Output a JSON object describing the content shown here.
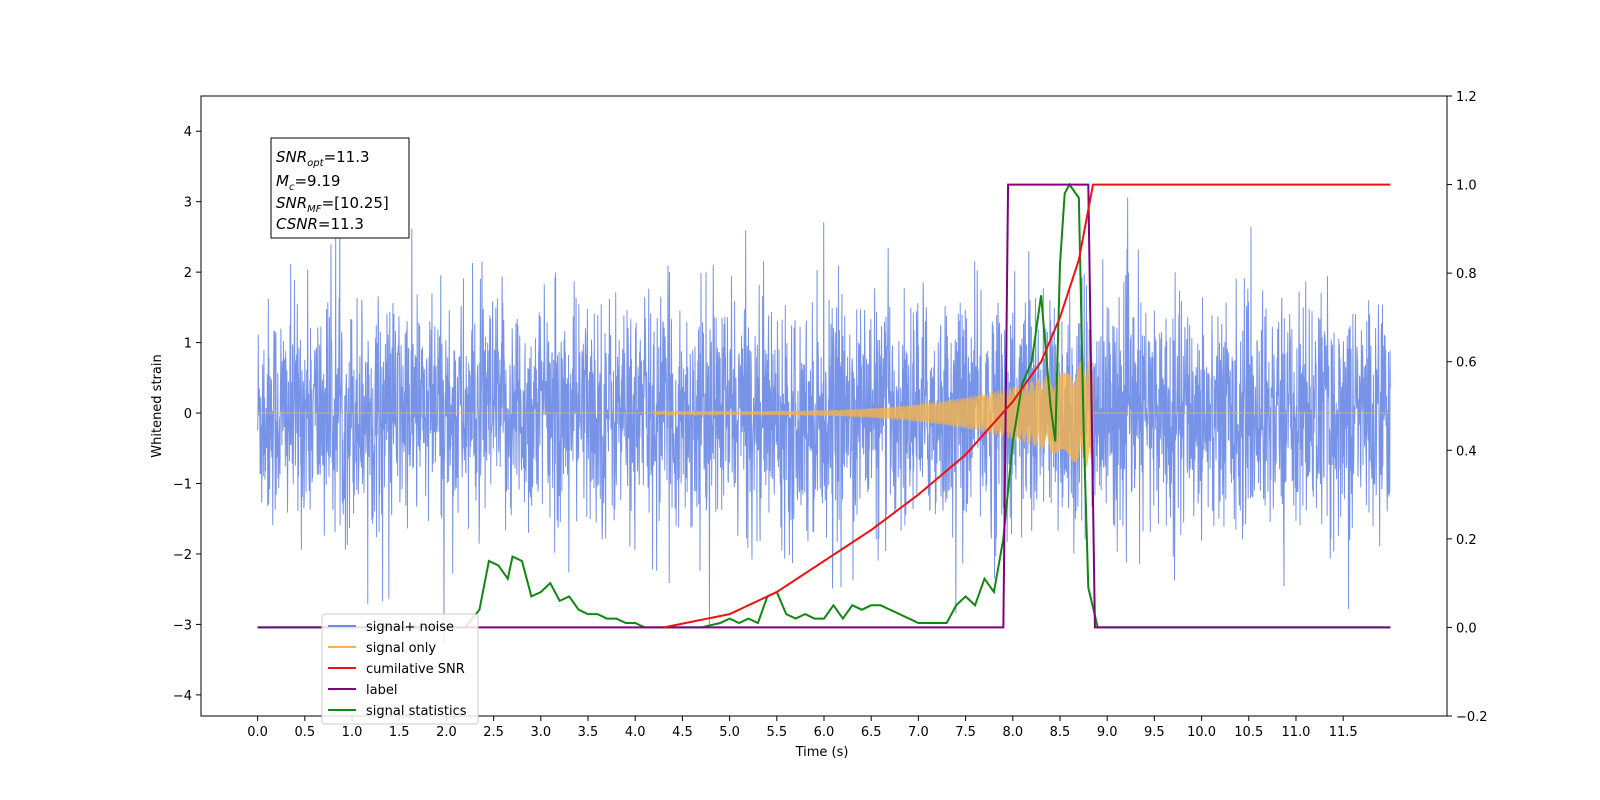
{
  "chart_data": {
    "type": "line",
    "xlabel": "Time (s)",
    "ylabel": "Whitened strain",
    "xlim": [
      -0.6,
      12.6
    ],
    "ylim": [
      -4.3,
      4.5
    ],
    "y2lim": [
      -0.2,
      1.2
    ],
    "x_ticks": [
      "0.0",
      "0.5",
      "1.0",
      "1.5",
      "2.0",
      "2.5",
      "3.0",
      "3.5",
      "4.0",
      "4.5",
      "5.0",
      "5.5",
      "6.0",
      "6.5",
      "7.0",
      "7.5",
      "8.0",
      "8.5",
      "9.0",
      "9.5",
      "10.0",
      "10.5",
      "11.0",
      "11.5"
    ],
    "y_ticks": [
      "4",
      "3",
      "2",
      "1",
      "0",
      "−1",
      "−2",
      "−3",
      "−4"
    ],
    "y2_ticks": [
      "1.2",
      "1.0",
      "0.8",
      "0.6",
      "0.4",
      "0.2",
      "0.0",
      "−0.2"
    ],
    "annotation": {
      "snr_opt": "=11.3",
      "mc": "=9.19",
      "snr_mf": "=[10.25]",
      "csnr": "=11.3"
    },
    "colors": {
      "noise": "#6b8ae6",
      "signal": "#f5b44a",
      "cumsnr": "#ee1111",
      "label": "#800080",
      "stats": "#118811"
    },
    "series": [
      {
        "name": "signal+ noise",
        "axis": "left",
        "description_values": "noise std ~0.85, x 0.0-12.0"
      },
      {
        "name": "signal only",
        "axis": "left",
        "values_note": "chirp 4.2-8.85 s, peak amplitude ~0.8"
      },
      {
        "name": "cumilative SNR",
        "axis": "right",
        "x": [
          4.3,
          5.0,
          5.5,
          6.0,
          6.5,
          7.0,
          7.5,
          8.0,
          8.3,
          8.5,
          8.7,
          8.85,
          12.0
        ],
        "values": [
          0.0,
          0.03,
          0.08,
          0.15,
          0.22,
          0.3,
          0.39,
          0.51,
          0.6,
          0.7,
          0.83,
          1.0,
          1.0
        ]
      },
      {
        "name": "label",
        "axis": "right",
        "x": [
          0.0,
          7.9,
          7.95,
          8.8,
          8.87,
          12.0
        ],
        "values": [
          0.0,
          0.0,
          1.0,
          1.0,
          0.0,
          0.0
        ]
      },
      {
        "name": "signal statistics",
        "axis": "right",
        "x": [
          0.0,
          2.2,
          2.35,
          2.45,
          2.55,
          2.65,
          2.7,
          2.8,
          2.9,
          3.0,
          3.1,
          3.2,
          3.3,
          3.4,
          3.5,
          3.6,
          3.7,
          3.8,
          3.9,
          4.0,
          4.1,
          4.3,
          4.5,
          4.7,
          4.9,
          5.0,
          5.1,
          5.2,
          5.3,
          5.4,
          5.5,
          5.6,
          5.7,
          5.8,
          5.9,
          6.0,
          6.1,
          6.2,
          6.3,
          6.4,
          6.5,
          6.6,
          6.7,
          6.8,
          6.9,
          7.0,
          7.1,
          7.2,
          7.3,
          7.4,
          7.5,
          7.6,
          7.7,
          7.8,
          7.9,
          8.0,
          8.1,
          8.2,
          8.3,
          8.4,
          8.45,
          8.5,
          8.55,
          8.6,
          8.7,
          8.75,
          8.8,
          8.9,
          12.0
        ],
        "values": [
          0.0,
          0.0,
          0.04,
          0.15,
          0.14,
          0.11,
          0.16,
          0.15,
          0.07,
          0.08,
          0.1,
          0.06,
          0.07,
          0.04,
          0.03,
          0.03,
          0.02,
          0.02,
          0.01,
          0.01,
          0.0,
          0.0,
          0.0,
          0.0,
          0.01,
          0.02,
          0.01,
          0.02,
          0.01,
          0.07,
          0.08,
          0.03,
          0.02,
          0.03,
          0.02,
          0.02,
          0.05,
          0.02,
          0.05,
          0.04,
          0.05,
          0.05,
          0.04,
          0.03,
          0.02,
          0.01,
          0.01,
          0.01,
          0.01,
          0.05,
          0.07,
          0.05,
          0.11,
          0.08,
          0.2,
          0.42,
          0.55,
          0.6,
          0.75,
          0.5,
          0.42,
          0.82,
          0.98,
          1.0,
          0.97,
          0.45,
          0.09,
          0.0,
          0.0
        ]
      }
    ],
    "legend": {
      "position": "lower-left",
      "entries": [
        "signal+ noise",
        "signal only",
        "cumilative SNR",
        "label",
        "signal statistics"
      ]
    },
    "grid": false
  }
}
